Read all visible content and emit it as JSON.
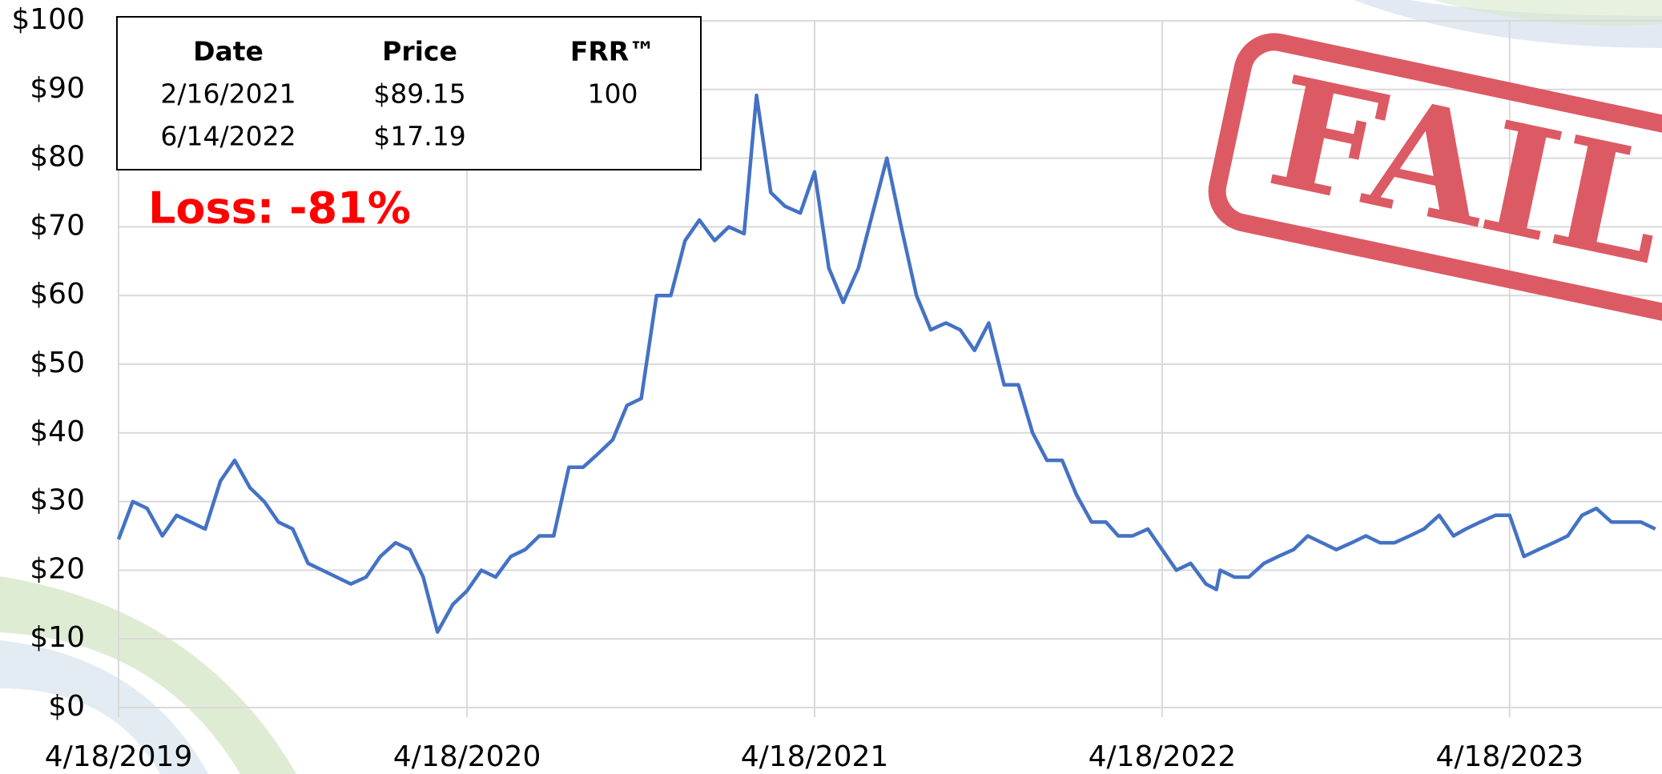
{
  "chart_data": {
    "type": "line",
    "x": [
      "4/18/2019",
      "5/3/2019",
      "5/18/2019",
      "6/3/2019",
      "6/18/2019",
      "7/3/2019",
      "7/18/2019",
      "8/3/2019",
      "8/18/2019",
      "9/3/2019",
      "9/18/2019",
      "10/3/2019",
      "10/18/2019",
      "11/3/2019",
      "11/18/2019",
      "12/3/2019",
      "12/18/2019",
      "1/3/2020",
      "1/18/2020",
      "2/3/2020",
      "2/18/2020",
      "3/3/2020",
      "3/18/2020",
      "4/3/2020",
      "4/18/2020",
      "5/3/2020",
      "5/18/2020",
      "6/3/2020",
      "6/18/2020",
      "7/3/2020",
      "7/18/2020",
      "8/3/2020",
      "8/18/2020",
      "9/3/2020",
      "9/18/2020",
      "10/3/2020",
      "10/18/2020",
      "11/3/2020",
      "11/18/2020",
      "12/3/2020",
      "12/18/2020",
      "1/3/2021",
      "1/18/2021",
      "2/3/2021",
      "2/16/2021",
      "3/3/2021",
      "3/18/2021",
      "4/3/2021",
      "4/18/2021",
      "5/3/2021",
      "5/18/2021",
      "6/3/2021",
      "6/18/2021",
      "7/3/2021",
      "7/18/2021",
      "8/3/2021",
      "8/18/2021",
      "9/3/2021",
      "9/18/2021",
      "10/3/2021",
      "10/18/2021",
      "11/3/2021",
      "11/18/2021",
      "12/3/2021",
      "12/18/2021",
      "1/3/2022",
      "1/18/2022",
      "2/3/2022",
      "2/18/2022",
      "3/3/2022",
      "3/18/2022",
      "4/3/2022",
      "4/18/2022",
      "5/3/2022",
      "5/18/2022",
      "6/3/2022",
      "6/14/2022",
      "6/18/2022",
      "7/3/2022",
      "7/18/2022",
      "8/3/2022",
      "8/18/2022",
      "9/3/2022",
      "9/18/2022",
      "10/3/2022",
      "10/18/2022",
      "11/3/2022",
      "11/18/2022",
      "12/3/2022",
      "12/18/2022",
      "1/3/2023",
      "1/18/2023",
      "2/3/2023",
      "2/18/2023",
      "3/3/2023",
      "3/18/2023",
      "4/3/2023",
      "4/18/2023",
      "5/3/2023",
      "5/18/2023",
      "6/3/2023",
      "6/18/2023",
      "7/3/2023",
      "7/18/2023",
      "8/3/2023",
      "8/18/2023",
      "9/3/2023",
      "9/18/2023"
    ],
    "values": [
      24.5,
      30,
      29,
      25,
      28,
      27,
      26,
      33,
      36,
      32,
      30,
      27,
      26,
      21,
      20,
      19,
      18,
      19,
      22,
      24,
      23,
      19,
      11,
      15,
      17,
      20,
      19,
      22,
      23,
      25,
      25,
      35,
      35,
      37,
      39,
      44,
      45,
      60,
      60,
      68,
      71,
      68,
      70,
      69,
      89.15,
      75,
      73,
      72,
      78,
      64,
      59,
      64,
      72,
      80,
      70,
      60,
      55,
      56,
      55,
      52,
      56,
      47,
      47,
      40,
      36,
      36,
      31,
      27,
      27,
      25,
      25,
      26,
      23,
      20,
      21,
      18,
      17.19,
      20,
      19,
      19,
      21,
      22,
      23,
      25,
      24,
      23,
      24,
      25,
      24,
      24,
      25,
      26,
      28,
      25,
      26,
      27,
      28,
      28,
      22,
      23,
      24,
      25,
      28,
      29,
      27,
      27,
      27,
      26
    ],
    "color": "#4472c4",
    "xlim": [
      "4/18/2019",
      "9/25/2023"
    ],
    "xticks": [
      "4/18/2019",
      "4/18/2020",
      "4/18/2021",
      "4/18/2022",
      "4/18/2023"
    ],
    "ylim": [
      0,
      100
    ],
    "yticks": [
      {
        "value": 0,
        "label": "$0"
      },
      {
        "value": 10,
        "label": "$10"
      },
      {
        "value": 20,
        "label": "$20"
      },
      {
        "value": 30,
        "label": "$30"
      },
      {
        "value": 40,
        "label": "$40"
      },
      {
        "value": 50,
        "label": "$50"
      },
      {
        "value": 60,
        "label": "$60"
      },
      {
        "value": 70,
        "label": "$70"
      },
      {
        "value": 80,
        "label": "$80"
      },
      {
        "value": 90,
        "label": "$90"
      },
      {
        "value": 100,
        "label": "$100"
      }
    ],
    "grid": true,
    "table": {
      "columns": [
        "Date",
        "Price",
        "FRR™"
      ],
      "rows": [
        [
          "2/16/2021",
          "$89.15",
          "100"
        ],
        [
          "6/14/2022",
          "$17.19"
        ]
      ]
    },
    "annotation": "Loss: -81%",
    "stamp": "FAIL"
  }
}
